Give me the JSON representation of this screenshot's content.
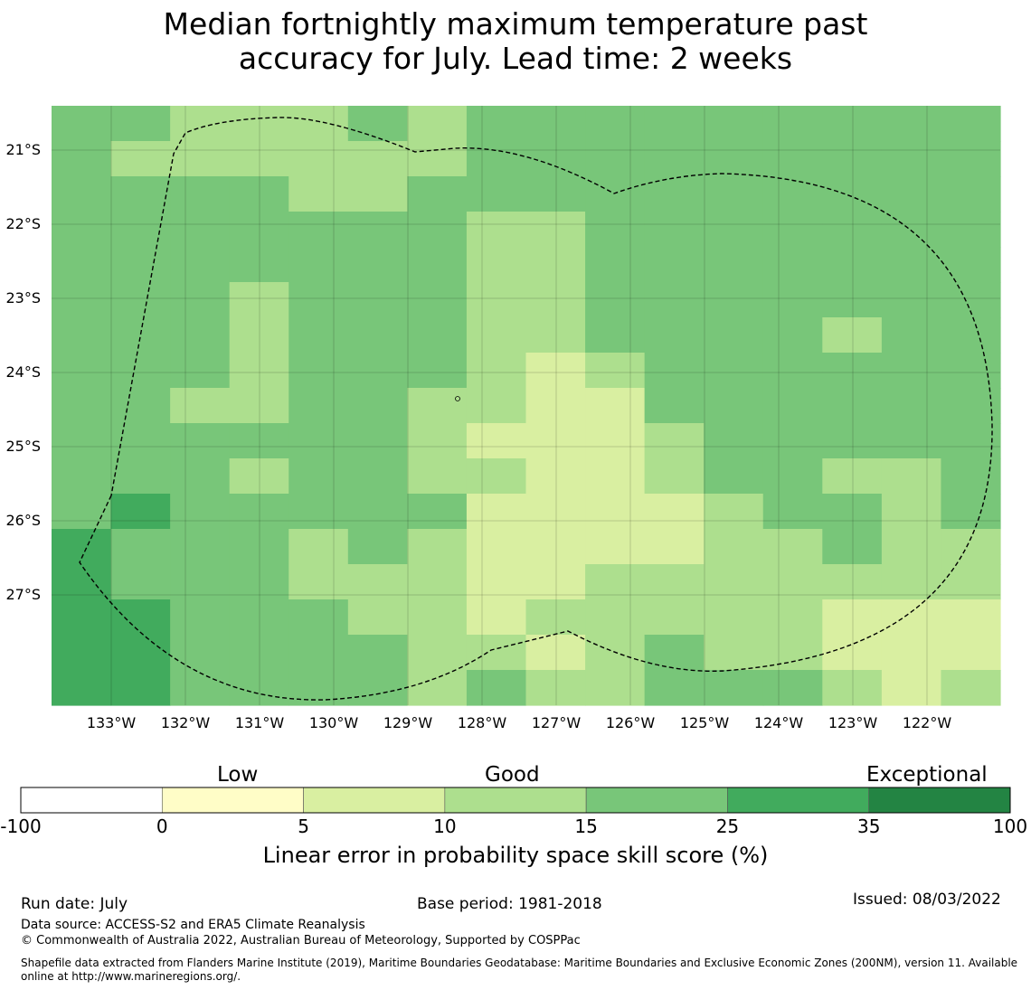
{
  "title": {
    "line1": "Median fortnightly maximum temperature past",
    "line2": "accuracy for July. Lead time: 2 weeks"
  },
  "map": {
    "lat_labels": [
      "21°S",
      "22°S",
      "23°S",
      "24°S",
      "25°S",
      "26°S",
      "27°S"
    ],
    "lon_labels": [
      "133°W",
      "132°W",
      "131°W",
      "130°W",
      "129°W",
      "128°W",
      "127°W",
      "126°W",
      "125°W",
      "124°W",
      "123°W",
      "122°W"
    ],
    "grid": [
      [
        "c25",
        "c25",
        "c15",
        "c15",
        "c15",
        "c25",
        "c15",
        "c25",
        "c25",
        "c25",
        "c25",
        "c25",
        "c25",
        "c25",
        "c25",
        "c25"
      ],
      [
        "c25",
        "c15",
        "c15",
        "c15",
        "c15",
        "c15",
        "c15",
        "c25",
        "c25",
        "c25",
        "c25",
        "c25",
        "c25",
        "c25",
        "c25",
        "c25"
      ],
      [
        "c25",
        "c25",
        "c25",
        "c25",
        "c15",
        "c15",
        "c25",
        "c25",
        "c25",
        "c25",
        "c25",
        "c25",
        "c25",
        "c25",
        "c25",
        "c25"
      ],
      [
        "c25",
        "c25",
        "c25",
        "c25",
        "c25",
        "c25",
        "c25",
        "c15",
        "c15",
        "c25",
        "c25",
        "c25",
        "c25",
        "c25",
        "c25",
        "c25"
      ],
      [
        "c25",
        "c25",
        "c25",
        "c25",
        "c25",
        "c25",
        "c25",
        "c15",
        "c15",
        "c25",
        "c25",
        "c25",
        "c25",
        "c25",
        "c25",
        "c25"
      ],
      [
        "c25",
        "c25",
        "c25",
        "c15",
        "c25",
        "c25",
        "c25",
        "c15",
        "c15",
        "c25",
        "c25",
        "c25",
        "c25",
        "c25",
        "c25",
        "c25"
      ],
      [
        "c25",
        "c25",
        "c25",
        "c15",
        "c25",
        "c25",
        "c25",
        "c15",
        "c15",
        "c25",
        "c25",
        "c25",
        "c25",
        "c15",
        "c25",
        "c25"
      ],
      [
        "c25",
        "c25",
        "c25",
        "c15",
        "c25",
        "c25",
        "c25",
        "c15",
        "c10",
        "c15",
        "c25",
        "c25",
        "c25",
        "c25",
        "c25",
        "c25"
      ],
      [
        "c25",
        "c25",
        "c15",
        "c15",
        "c25",
        "c25",
        "c15",
        "c15",
        "c10",
        "c10",
        "c25",
        "c25",
        "c25",
        "c25",
        "c25",
        "c25"
      ],
      [
        "c25",
        "c25",
        "c25",
        "c25",
        "c25",
        "c25",
        "c15",
        "c10",
        "c10",
        "c10",
        "c15",
        "c25",
        "c25",
        "c25",
        "c25",
        "c25"
      ],
      [
        "c25",
        "c25",
        "c25",
        "c15",
        "c25",
        "c25",
        "c15",
        "c15",
        "c10",
        "c10",
        "c15",
        "c25",
        "c25",
        "c15",
        "c15",
        "c25"
      ],
      [
        "c25",
        "c35",
        "c25",
        "c25",
        "c25",
        "c25",
        "c25",
        "c10",
        "c10",
        "c10",
        "c10",
        "c15",
        "c25",
        "c25",
        "c15",
        "c25"
      ],
      [
        "c35",
        "c25",
        "c25",
        "c25",
        "c15",
        "c25",
        "c15",
        "c10",
        "c10",
        "c10",
        "c10",
        "c15",
        "c15",
        "c25",
        "c15",
        "c15"
      ],
      [
        "c35",
        "c25",
        "c25",
        "c25",
        "c15",
        "c15",
        "c15",
        "c10",
        "c10",
        "c15",
        "c15",
        "c15",
        "c15",
        "c15",
        "c15",
        "c15"
      ],
      [
        "c35",
        "c35",
        "c25",
        "c25",
        "c25",
        "c15",
        "c15",
        "c10",
        "c15",
        "c15",
        "c15",
        "c15",
        "c15",
        "c10",
        "c10",
        "c10"
      ],
      [
        "c35",
        "c35",
        "c25",
        "c25",
        "c25",
        "c25",
        "c15",
        "c15",
        "c10",
        "c15",
        "c25",
        "c15",
        "c15",
        "c10",
        "c10",
        "c10"
      ],
      [
        "c35",
        "c35",
        "c25",
        "c25",
        "c25",
        "c25",
        "c15",
        "c25",
        "c15",
        "c15",
        "c25",
        "c25",
        "c25",
        "c15",
        "c10",
        "c15"
      ]
    ]
  },
  "colorbar": {
    "headers": [
      "Low",
      "Good",
      "Exceptional"
    ],
    "ticks": [
      "-100",
      "0",
      "5",
      "10",
      "15",
      "25",
      "35",
      "100"
    ],
    "title": "Linear error in probability space skill score (%)",
    "colors": [
      "#ffffff",
      "#fffdc7",
      "#d9efa1",
      "#addf8e",
      "#78c679",
      "#41ab5d",
      "#238443"
    ]
  },
  "footer": {
    "run_date": "Run date: July",
    "base_period": "Base period: 1981-2018",
    "issued": "Issued: 08/03/2022",
    "data_source": "Data source: ACCESS-S2 and ERA5 Climate Reanalysis",
    "copyright": "© Commonwealth of Australia 2022, Australian Bureau of Meteorology, Supported by COSPPac",
    "shapefile_1": "Shapefile data extracted from Flanders Marine Institute (2019), Maritime Boundaries Geodatabase: Maritime Boundaries and Exclusive Economic Zones (200NM), version 11. Available",
    "shapefile_2": "online at http://www.marineregions.org/."
  }
}
